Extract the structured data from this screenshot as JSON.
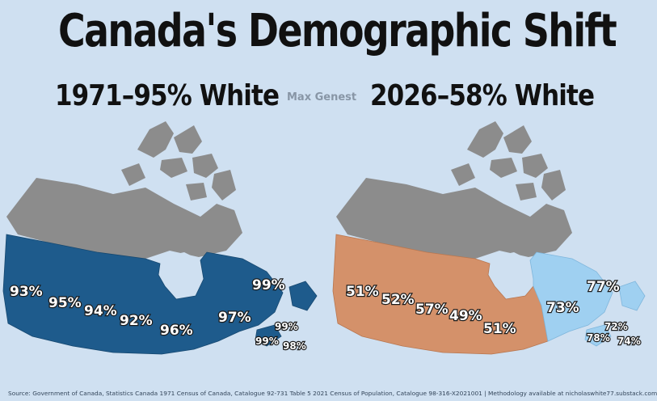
{
  "title": "Canada's Demographic Shift",
  "author": "Max Genest",
  "left_heading": "1971–95% White",
  "right_heading": "2026–58% White",
  "left_labels": [
    "93%",
    "95%",
    "94%",
    "92%",
    "96%",
    "97%",
    "99%",
    "99%",
    "99%",
    "98%"
  ],
  "right_labels": [
    "51%",
    "52%",
    "57%",
    "49%",
    "51%",
    "73%",
    "77%",
    "72%",
    "78%",
    "74%"
  ],
  "colors": {
    "background": "#cfe0f1",
    "territories": "#8c8c8c",
    "map_1971": "#1e5b8c",
    "map_2026_prairies_ontario": "#d4916a",
    "map_2026_east": "#9fd0f1"
  },
  "source": "Source: Government of Canada, Statistics Canada 1971 Census of Canada, Catalogue 92-731 Table 5 2021 Census of Population, Catalogue 98-316-X2021001 | Methodology available at nicholaswhite77.substack.com"
}
